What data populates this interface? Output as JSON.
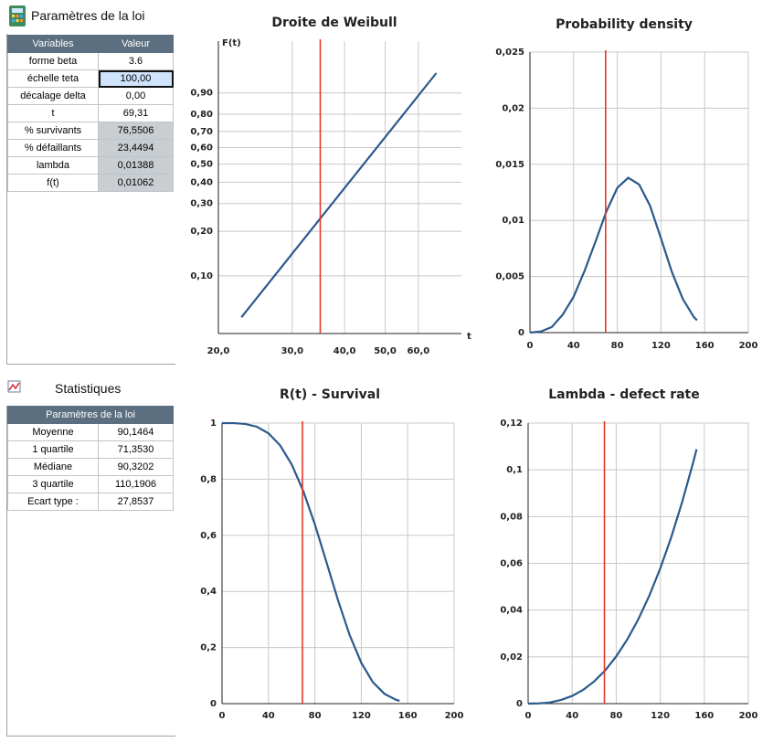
{
  "params": {
    "title": "Paramètres de la loi",
    "columns": [
      "Variables",
      "Valeur"
    ],
    "rows": [
      [
        "forme beta",
        "3.6"
      ],
      [
        "échelle teta",
        "100,00"
      ],
      [
        "décalage delta",
        "0,00"
      ],
      [
        "t",
        "69,31"
      ],
      [
        "% survivants",
        "76,5506"
      ],
      [
        "% défaillants",
        "23,4494"
      ],
      [
        "lambda",
        "0,01388"
      ],
      [
        "f(t)",
        "0,01062"
      ]
    ]
  },
  "stats": {
    "title": "Statistiques",
    "header": "Paramètres de la loi",
    "rows": [
      [
        "Moyenne",
        "90,1464"
      ],
      [
        "1 quartile",
        "71,3530"
      ],
      [
        "Médiane",
        "90,3202"
      ],
      [
        "3 quartile",
        "110,1906"
      ],
      [
        "Ecart type :",
        "27,8537"
      ]
    ]
  },
  "chart_data": [
    {
      "type": "line",
      "title": "Droite de Weibull",
      "x_label": "t",
      "y_label": "F(t)",
      "x_scale": "log",
      "y_scale": "weibull",
      "x": [
        22.7,
        66.2
      ],
      "series": [
        {
          "color": "#2b5a8c",
          "values": [
            0.051,
            0.96
          ]
        }
      ],
      "vline": {
        "x": 35,
        "color": "#e8362a"
      },
      "xlim": [
        20,
        76
      ],
      "ylim": [
        0.039,
        0.996
      ],
      "xticks": [
        {
          "value": 20,
          "label": "20,0"
        },
        {
          "value": 30,
          "label": "30,0"
        },
        {
          "value": 40,
          "label": "40,0"
        },
        {
          "value": 50,
          "label": "50,0"
        },
        {
          "value": 60,
          "label": "60,0"
        }
      ],
      "yticks": [
        {
          "value": 0.1,
          "label": "0,10"
        },
        {
          "value": 0.2,
          "label": "0,20"
        },
        {
          "value": 0.3,
          "label": "0,30"
        },
        {
          "value": 0.4,
          "label": "0,40"
        },
        {
          "value": 0.5,
          "label": "0,50"
        },
        {
          "value": 0.6,
          "label": "0,60"
        },
        {
          "value": 0.7,
          "label": "0,70"
        },
        {
          "value": 0.8,
          "label": "0,80"
        },
        {
          "value": 0.9,
          "label": "0,90"
        }
      ],
      "grid": true
    },
    {
      "type": "line",
      "title": "Probability density",
      "x": [
        0,
        10,
        20,
        30,
        40,
        50,
        60,
        70,
        80,
        90,
        100,
        110,
        120,
        130,
        140,
        150,
        153
      ],
      "series": [
        {
          "color": "#2b5a8c",
          "values": [
            0,
            0.0001,
            0.0005,
            0.0016,
            0.0032,
            0.0055,
            0.0081,
            0.0108,
            0.0129,
            0.0138,
            0.0132,
            0.0113,
            0.0084,
            0.0054,
            0.003,
            0.0014,
            0.0011
          ]
        }
      ],
      "vline": {
        "x": 69.31,
        "color": "#e8362a"
      },
      "xlim": [
        0,
        200
      ],
      "ylim": [
        0,
        0.025
      ],
      "xticks": [
        0,
        40,
        80,
        120,
        160,
        200
      ],
      "yticks": [
        0,
        {
          "value": 0.005,
          "label": "0,005"
        },
        {
          "value": 0.01,
          "label": "0,01"
        },
        {
          "value": 0.015,
          "label": "0,015"
        },
        {
          "value": 0.02,
          "label": "0,02"
        },
        {
          "value": 0.025,
          "label": "0,025"
        }
      ],
      "grid": true
    },
    {
      "type": "line",
      "title": "R(t) - Survival",
      "x": [
        0,
        10,
        20,
        30,
        40,
        50,
        60,
        70,
        80,
        90,
        100,
        110,
        120,
        130,
        140,
        150,
        153
      ],
      "series": [
        {
          "color": "#2b5a8c",
          "values": [
            1,
            0.9998,
            0.997,
            0.987,
            0.9637,
            0.9209,
            0.853,
            0.7581,
            0.639,
            0.5044,
            0.3679,
            0.2443,
            0.1455,
            0.0764,
            0.0348,
            0.0135,
            0.0098
          ]
        }
      ],
      "vline": {
        "x": 69.31,
        "color": "#e8362a"
      },
      "xlim": [
        0,
        200
      ],
      "ylim": [
        0,
        1
      ],
      "xticks": [
        0,
        40,
        80,
        120,
        160,
        200
      ],
      "yticks": [
        0,
        {
          "value": 0.2,
          "label": "0,2"
        },
        {
          "value": 0.4,
          "label": "0,4"
        },
        {
          "value": 0.6,
          "label": "0,6"
        },
        {
          "value": 0.8,
          "label": "0,8"
        },
        1
      ],
      "grid": true
    },
    {
      "type": "line",
      "title": "Lambda - defect rate",
      "x": [
        0,
        10,
        20,
        30,
        40,
        50,
        60,
        70,
        80,
        90,
        100,
        110,
        120,
        130,
        140,
        150,
        153
      ],
      "series": [
        {
          "color": "#2b5a8c",
          "values": [
            0,
            0.0001,
            0.0005,
            0.0016,
            0.0033,
            0.0059,
            0.0095,
            0.0142,
            0.0202,
            0.0274,
            0.036,
            0.0461,
            0.0578,
            0.0712,
            0.0864,
            0.1033,
            0.1088
          ]
        }
      ],
      "vline": {
        "x": 69.31,
        "color": "#e8362a"
      },
      "xlim": [
        0,
        200
      ],
      "ylim": [
        0,
        0.12
      ],
      "xticks": [
        0,
        40,
        80,
        120,
        160,
        200
      ],
      "yticks": [
        0,
        {
          "value": 0.02,
          "label": "0,02"
        },
        {
          "value": 0.04,
          "label": "0,04"
        },
        {
          "value": 0.06,
          "label": "0,06"
        },
        {
          "value": 0.08,
          "label": "0,08"
        },
        {
          "value": 0.1,
          "label": "0,1"
        },
        {
          "value": 0.12,
          "label": "0,12"
        }
      ],
      "grid": true
    }
  ]
}
